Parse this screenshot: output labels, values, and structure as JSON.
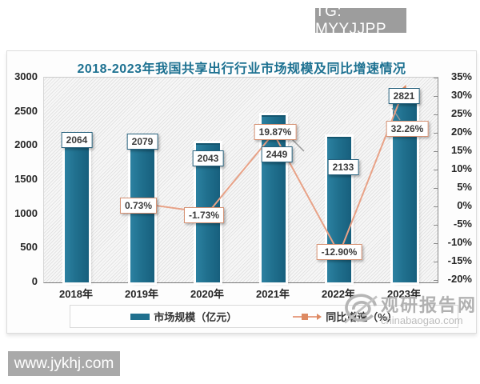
{
  "overlays": {
    "tg_badge": "TG: MYYJJPP",
    "site_badge": "www.jykhj.com"
  },
  "watermark": {
    "name": "观研报告网",
    "domain": "chinabaogao.com"
  },
  "chart_data": {
    "type": "bar+line-combo",
    "title": "2018-2023年我国共享出行行业市场规模及同比增速情况",
    "categories": [
      "2018年",
      "2019年",
      "2020年",
      "2021年",
      "2022年",
      "2023年"
    ],
    "series": [
      {
        "name": "市场规模（亿元）",
        "type": "bar",
        "axis": "left",
        "values": [
          2064,
          2079,
          2043,
          2449,
          2133,
          2821
        ],
        "labels": [
          "2064",
          "2079",
          "2043",
          "2449",
          "2133",
          "2821"
        ],
        "color": "#20708e"
      },
      {
        "name": "同比增速（%）",
        "type": "line",
        "axis": "right",
        "values": [
          null,
          0.73,
          -1.73,
          19.87,
          -12.9,
          32.26
        ],
        "labels": [
          null,
          "0.73%",
          "-1.73%",
          "19.87%",
          "-12.90%",
          "32.26%"
        ],
        "color": "#e8a287"
      }
    ],
    "left_axis": {
      "min": 0,
      "max": 3000,
      "ticks": [
        "3000",
        "2500",
        "2000",
        "1500",
        "1000",
        "500",
        "0"
      ]
    },
    "right_axis": {
      "min": -20,
      "max": 35,
      "ticks": [
        "35%",
        "30%",
        "25%",
        "20%",
        "15%",
        "10%",
        "5%",
        "0%",
        "-5%",
        "-10%",
        "-15%",
        "-20%"
      ]
    },
    "legend": [
      "市场规模（亿元）",
      "同比增速（%）"
    ],
    "legend_position": "bottom",
    "grid": "hatched-background-no-gridlines"
  }
}
